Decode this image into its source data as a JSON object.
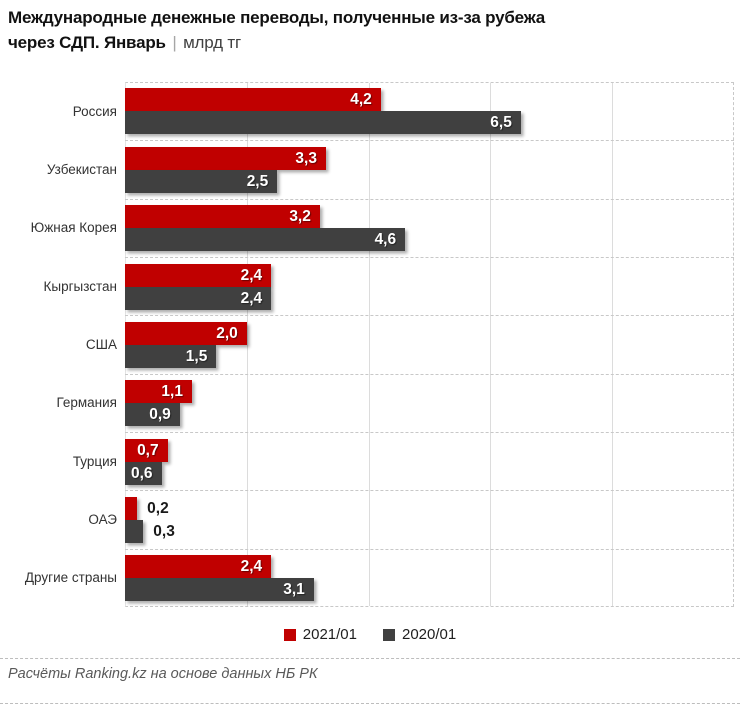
{
  "title": {
    "line1": "Международные денежные переводы, полученные из-за рубежа",
    "line2_bold": "через СДП. Январь",
    "line2_sep": "|",
    "line2_unit": "млрд тг"
  },
  "chart_data": {
    "type": "bar",
    "orientation": "horizontal",
    "title": "Международные денежные переводы, полученные из-за рубежа через СДП. Январь",
    "unit": "млрд тг",
    "categories": [
      "Россия",
      "Узбекистан",
      "Южная Корея",
      "Кыргызстан",
      "США",
      "Германия",
      "Турция",
      "ОАЭ",
      "Другие страны"
    ],
    "series": [
      {
        "name": "2021/01",
        "color": "#c00000",
        "values": [
          4.2,
          3.3,
          3.2,
          2.4,
          2.0,
          1.1,
          0.7,
          0.2,
          2.4
        ],
        "labels": [
          "4,2",
          "3,3",
          "3,2",
          "2,4",
          "2,0",
          "1,1",
          "0,7",
          "0,2",
          "2,4"
        ]
      },
      {
        "name": "2020/01",
        "color": "#404040",
        "values": [
          6.5,
          2.5,
          4.6,
          2.4,
          1.5,
          0.9,
          0.6,
          0.3,
          3.1
        ],
        "labels": [
          "6,5",
          "2,5",
          "4,6",
          "2,4",
          "1,5",
          "0,9",
          "0,6",
          "0,3",
          "3,1"
        ]
      }
    ],
    "xlim": [
      0,
      10
    ],
    "gridlines_x": [
      2,
      4,
      6,
      8
    ],
    "grid": "vertical solid lines, dashed row separators",
    "legend_position": "bottom",
    "value_labels": "inside bar end (white); outside in black when bar too short"
  },
  "legend": [
    {
      "label": "2021/01",
      "color": "#c00000"
    },
    {
      "label": "2020/01",
      "color": "#404040"
    }
  ],
  "footer": {
    "source": "Расчёты Ranking.kz на основе данных НБ РК"
  },
  "colors": {
    "series_2021": "#c00000",
    "series_2020": "#404040",
    "gridline": "#dcdcdc",
    "dashed_line": "#c8c8c8",
    "title_text": "#111111",
    "category_text": "#333333",
    "footer_text": "#595959"
  }
}
